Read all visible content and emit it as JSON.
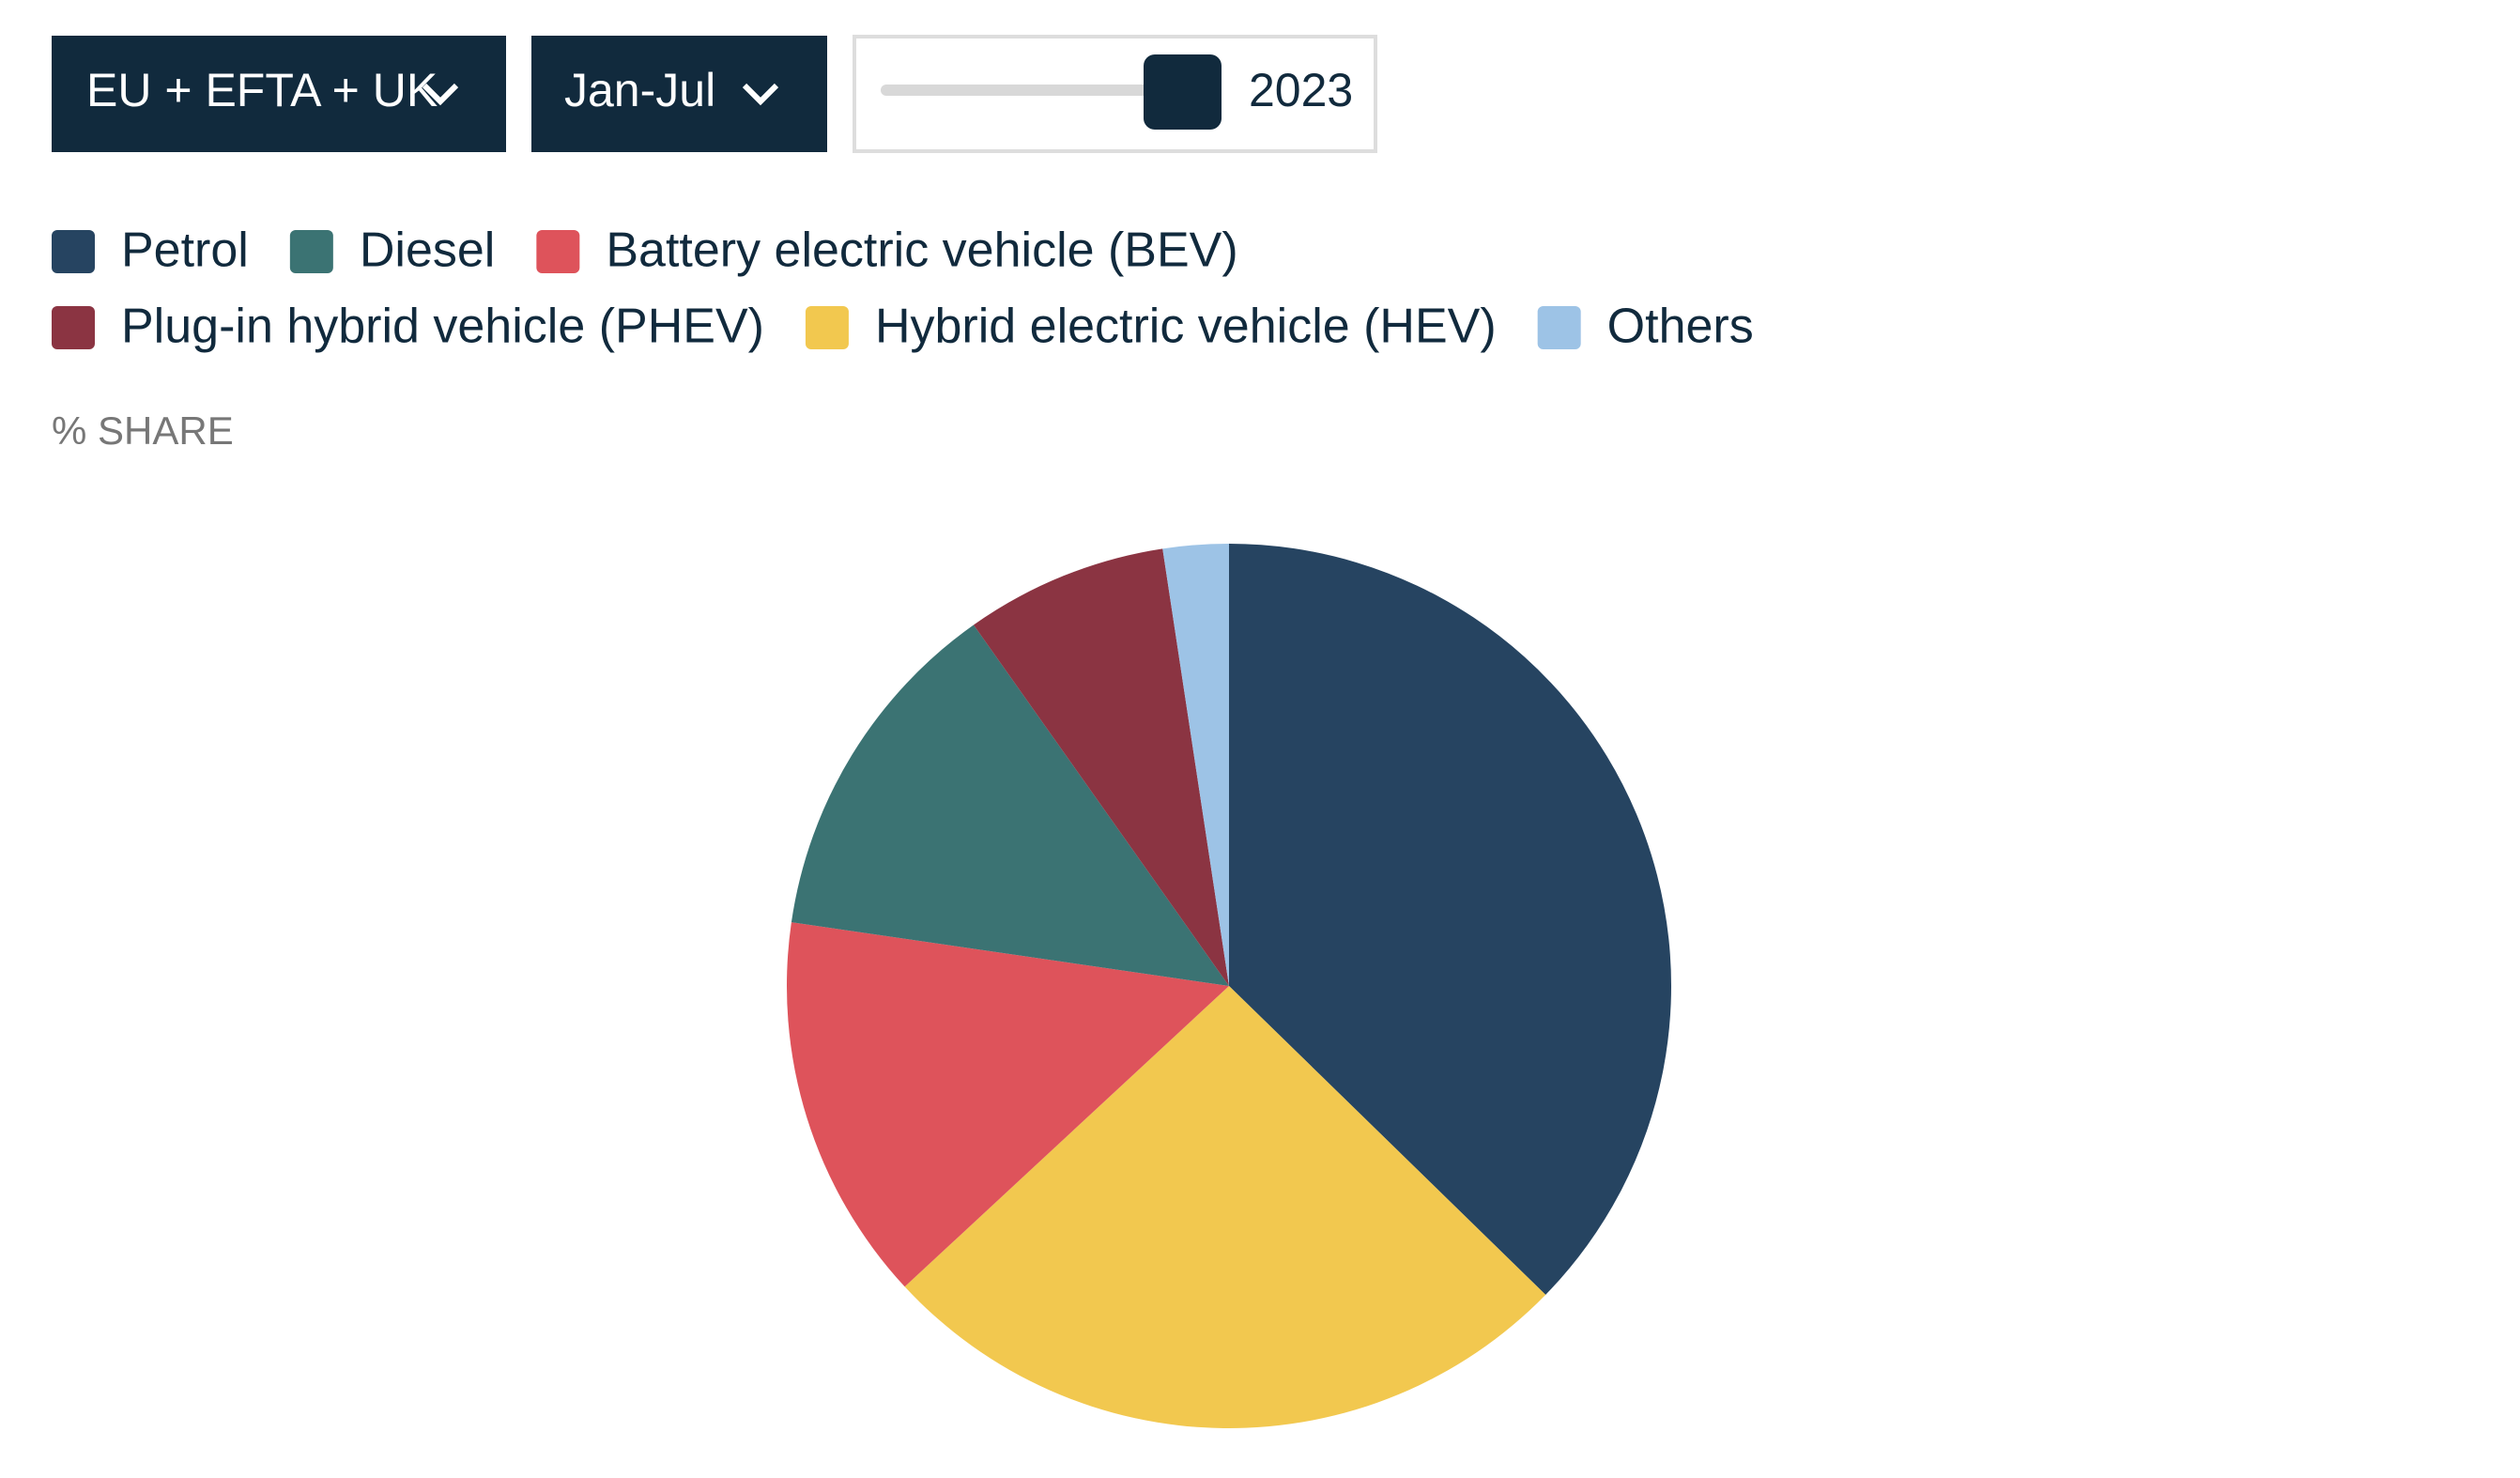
{
  "controls": {
    "region": "EU + EFTA + UK",
    "period": "Jan-Jul",
    "year": "2023"
  },
  "chart_data": {
    "type": "pie",
    "y_label": "% SHARE",
    "categories": [
      "Petrol",
      "Diesel",
      "Battery electric vehicle (BEV)",
      "Plug-in hybrid vehicle (PHEV)",
      "Hybrid electric vehicle (HEV)",
      "Others"
    ],
    "values": [
      37.3,
      12.9,
      14.2,
      7.4,
      25.8,
      2.4
    ],
    "colors": [
      "#264461",
      "#3b7373",
      "#de535b",
      "#8b3442",
      "#f2c84f",
      "#9dc3e6"
    ]
  }
}
